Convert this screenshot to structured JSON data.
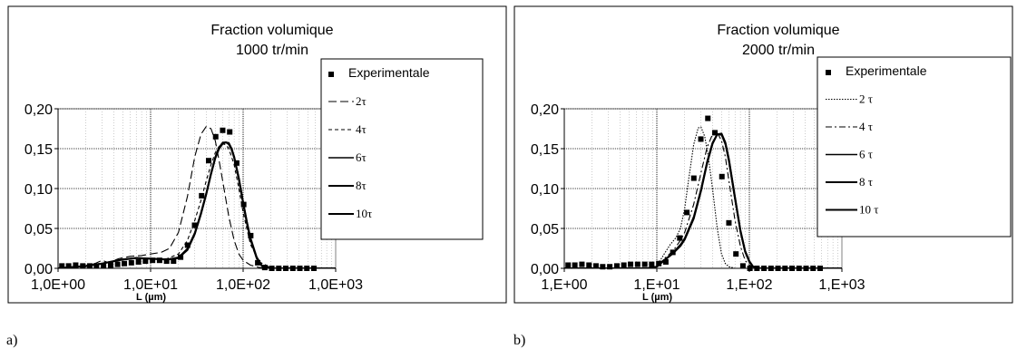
{
  "chart_data": [
    {
      "type": "line",
      "panel_label": "a)",
      "title": "Fraction volumique",
      "subtitle": "1000 tr/min",
      "xlabel": "L (µm)",
      "ylabel": "",
      "x_scale": "log",
      "xlim": [
        1,
        1000
      ],
      "ylim": [
        0,
        0.2
      ],
      "y_ticks": [
        "0,00",
        "0,05",
        "0,10",
        "0,15",
        "0,20"
      ],
      "x_ticks": [
        "1,0E+00",
        "1,0E+01",
        "1,0E+02",
        "1,0E+03"
      ],
      "grid": true,
      "legend_position": "right",
      "experimental": {
        "name": "Experimentale",
        "x": [
          1.1,
          1.3,
          1.55,
          1.85,
          2.2,
          2.6,
          3.1,
          3.7,
          4.4,
          5.2,
          6.2,
          7.4,
          8.8,
          10.5,
          12.5,
          14.9,
          17.7,
          21.1,
          25.1,
          29.9,
          35.6,
          42.4,
          50.5,
          60.1,
          71.6,
          85.2,
          101.4,
          120.8,
          143.8,
          171.2,
          203.9,
          242.8,
          289.1,
          344.3,
          410,
          488.2,
          581.4
        ],
        "y": [
          0.003,
          0.003,
          0.004,
          0.003,
          0.003,
          0.003,
          0.003,
          0.004,
          0.005,
          0.006,
          0.007,
          0.008,
          0.009,
          0.01,
          0.01,
          0.009,
          0.009,
          0.014,
          0.029,
          0.054,
          0.091,
          0.135,
          0.165,
          0.173,
          0.171,
          0.132,
          0.08,
          0.041,
          0.007,
          0.001,
          0.0,
          0.0,
          0.0,
          0.0,
          0.0,
          0.0,
          0.0
        ]
      },
      "series": [
        {
          "name": "2τ",
          "style": "long-dash",
          "x": [
            1,
            2,
            2.5,
            3,
            3.5,
            4.5,
            6,
            8,
            10,
            13,
            16,
            20,
            25,
            30,
            35,
            40,
            45,
            50,
            55,
            60,
            70,
            80,
            90,
            100,
            120,
            150,
            200,
            1000
          ],
          "y": [
            0.0,
            0.002,
            0.006,
            0.01,
            0.007,
            0.012,
            0.015,
            0.016,
            0.018,
            0.02,
            0.025,
            0.045,
            0.09,
            0.14,
            0.168,
            0.178,
            0.175,
            0.16,
            0.135,
            0.11,
            0.065,
            0.035,
            0.018,
            0.01,
            0.004,
            0.001,
            0.0,
            0.0
          ]
        },
        {
          "name": "4τ",
          "style": "short-dash",
          "x": [
            1,
            2,
            3,
            4,
            5,
            7,
            10,
            15,
            20,
            25,
            30,
            35,
            40,
            45,
            50,
            55,
            60,
            65,
            70,
            80,
            90,
            100,
            120,
            150,
            200,
            1000
          ],
          "y": [
            0.0,
            0.003,
            0.006,
            0.009,
            0.011,
            0.013,
            0.012,
            0.012,
            0.018,
            0.035,
            0.06,
            0.085,
            0.11,
            0.13,
            0.145,
            0.153,
            0.156,
            0.155,
            0.15,
            0.13,
            0.1,
            0.07,
            0.03,
            0.008,
            0.001,
            0.0
          ]
        },
        {
          "name": "6τ",
          "style": "solid",
          "x": [
            1,
            2,
            3,
            4,
            5,
            7,
            10,
            15,
            20,
            25,
            30,
            35,
            40,
            45,
            50,
            55,
            60,
            65,
            70,
            75,
            80,
            90,
            100,
            110,
            120,
            140,
            160,
            200,
            1000
          ],
          "y": [
            0.0,
            0.003,
            0.006,
            0.009,
            0.011,
            0.013,
            0.012,
            0.011,
            0.014,
            0.025,
            0.045,
            0.07,
            0.095,
            0.12,
            0.14,
            0.152,
            0.158,
            0.158,
            0.155,
            0.148,
            0.138,
            0.11,
            0.08,
            0.055,
            0.035,
            0.012,
            0.003,
            0.0,
            0.0
          ]
        },
        {
          "name": "8τ",
          "style": "solid",
          "x": [
            1,
            2,
            3,
            4,
            5,
            7,
            10,
            15,
            20,
            25,
            30,
            35,
            40,
            45,
            50,
            55,
            60,
            65,
            70,
            75,
            80,
            90,
            100,
            110,
            120,
            140,
            160,
            200,
            1000
          ],
          "y": [
            0.0,
            0.003,
            0.006,
            0.009,
            0.011,
            0.013,
            0.012,
            0.011,
            0.013,
            0.024,
            0.044,
            0.069,
            0.094,
            0.119,
            0.139,
            0.151,
            0.157,
            0.158,
            0.156,
            0.149,
            0.139,
            0.112,
            0.082,
            0.057,
            0.037,
            0.013,
            0.003,
            0.0,
            0.0
          ]
        },
        {
          "name": "10τ",
          "style": "solid",
          "x": [
            1,
            2,
            3,
            4,
            5,
            7,
            10,
            15,
            20,
            25,
            30,
            35,
            40,
            45,
            50,
            55,
            60,
            65,
            70,
            75,
            80,
            90,
            100,
            110,
            120,
            140,
            160,
            200,
            1000
          ],
          "y": [
            0.0,
            0.003,
            0.006,
            0.009,
            0.011,
            0.013,
            0.012,
            0.011,
            0.013,
            0.023,
            0.043,
            0.068,
            0.093,
            0.118,
            0.138,
            0.15,
            0.156,
            0.158,
            0.157,
            0.15,
            0.14,
            0.113,
            0.083,
            0.058,
            0.038,
            0.014,
            0.003,
            0.0,
            0.0
          ]
        }
      ]
    },
    {
      "type": "line",
      "panel_label": "b)",
      "title": "Fraction volumique",
      "subtitle": "2000 tr/min",
      "xlabel": "L (µm)",
      "ylabel": "",
      "x_scale": "log",
      "xlim": [
        1,
        1000
      ],
      "ylim": [
        0,
        0.2
      ],
      "y_ticks": [
        "0,00",
        "0,05",
        "0,10",
        "0,15",
        "0,20"
      ],
      "x_ticks": [
        "1,E+00",
        "1,E+01",
        "1,E+02",
        "1,E+03"
      ],
      "grid": true,
      "legend_position": "right",
      "experimental": {
        "name": "Experimentale",
        "x": [
          1.1,
          1.3,
          1.55,
          1.85,
          2.2,
          2.6,
          3.1,
          3.7,
          4.4,
          5.2,
          6.2,
          7.4,
          8.8,
          10.5,
          12.5,
          14.9,
          17.7,
          21.1,
          25.1,
          29.9,
          35.6,
          42.4,
          50.5,
          60.1,
          71.6,
          85.2,
          101.4,
          120.8,
          143.8,
          171.2,
          203.9,
          242.8,
          289.1,
          344.3,
          410,
          488.2,
          581.4
        ],
        "y": [
          0.004,
          0.004,
          0.005,
          0.004,
          0.003,
          0.002,
          0.002,
          0.003,
          0.004,
          0.005,
          0.005,
          0.005,
          0.005,
          0.006,
          0.008,
          0.02,
          0.038,
          0.07,
          0.113,
          0.162,
          0.188,
          0.17,
          0.115,
          0.057,
          0.018,
          0.003,
          0.0,
          0.0,
          0.0,
          0.0,
          0.0,
          0.0,
          0.0,
          0.0,
          0.0,
          0.0,
          0.0
        ]
      },
      "series": [
        {
          "name": "2 τ",
          "style": "dotted",
          "x": [
            1,
            8,
            10,
            12,
            14,
            16,
            18,
            20,
            22,
            25,
            28,
            30,
            33,
            36,
            40,
            45,
            50,
            55,
            60,
            70,
            80,
            100,
            1000
          ],
          "y": [
            0.0,
            0.0,
            0.003,
            0.018,
            0.03,
            0.038,
            0.05,
            0.075,
            0.11,
            0.155,
            0.176,
            0.177,
            0.165,
            0.14,
            0.1,
            0.05,
            0.018,
            0.006,
            0.002,
            0.0,
            0.0,
            0.0,
            0.0
          ]
        },
        {
          "name": "4 τ",
          "style": "dash-dot",
          "x": [
            1,
            8,
            10,
            12,
            15,
            18,
            20,
            25,
            30,
            35,
            40,
            45,
            50,
            55,
            60,
            70,
            80,
            90,
            100,
            120,
            1000
          ],
          "y": [
            0.0,
            0.0,
            0.002,
            0.012,
            0.022,
            0.035,
            0.045,
            0.08,
            0.12,
            0.152,
            0.168,
            0.17,
            0.16,
            0.14,
            0.11,
            0.06,
            0.028,
            0.01,
            0.004,
            0.0,
            0.0
          ]
        },
        {
          "name": "6 τ",
          "style": "solid",
          "x": [
            1,
            8,
            10,
            12,
            15,
            18,
            20,
            25,
            30,
            35,
            40,
            45,
            50,
            55,
            60,
            70,
            80,
            90,
            100,
            110,
            130,
            1000
          ],
          "y": [
            0.0,
            0.0,
            0.002,
            0.01,
            0.02,
            0.03,
            0.038,
            0.065,
            0.1,
            0.135,
            0.158,
            0.168,
            0.167,
            0.155,
            0.133,
            0.085,
            0.045,
            0.02,
            0.008,
            0.002,
            0.0,
            0.0
          ]
        },
        {
          "name": "8 τ",
          "style": "solid",
          "x": [
            1,
            8,
            10,
            12,
            15,
            18,
            20,
            25,
            30,
            35,
            40,
            45,
            50,
            55,
            60,
            70,
            80,
            90,
            100,
            110,
            130,
            1000
          ],
          "y": [
            0.0,
            0.0,
            0.002,
            0.01,
            0.019,
            0.029,
            0.037,
            0.063,
            0.098,
            0.133,
            0.157,
            0.168,
            0.168,
            0.157,
            0.136,
            0.088,
            0.047,
            0.021,
            0.008,
            0.002,
            0.0,
            0.0
          ]
        },
        {
          "name": "10 τ",
          "style": "solid",
          "x": [
            1,
            8,
            10,
            12,
            15,
            18,
            20,
            25,
            30,
            35,
            40,
            45,
            50,
            55,
            60,
            70,
            80,
            90,
            100,
            110,
            130,
            1000
          ],
          "y": [
            0.0,
            0.0,
            0.002,
            0.01,
            0.019,
            0.028,
            0.036,
            0.062,
            0.097,
            0.132,
            0.156,
            0.168,
            0.169,
            0.158,
            0.137,
            0.089,
            0.048,
            0.022,
            0.009,
            0.002,
            0.0,
            0.0
          ]
        }
      ]
    }
  ]
}
